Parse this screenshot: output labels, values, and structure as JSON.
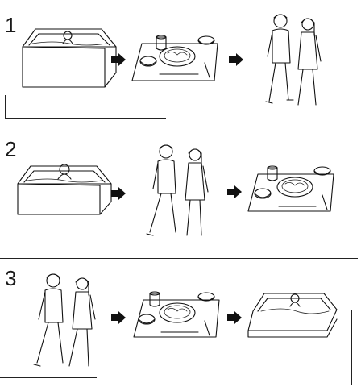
{
  "panels": [
    {
      "number": "1",
      "steps": [
        "bath-tub",
        "meal-tray",
        "couple-walking"
      ]
    },
    {
      "number": "2",
      "steps": [
        "bath-tub",
        "couple-walking",
        "meal-tray"
      ]
    },
    {
      "number": "3",
      "steps": [
        "couple-walking",
        "meal-tray",
        "bath-tub"
      ]
    }
  ]
}
